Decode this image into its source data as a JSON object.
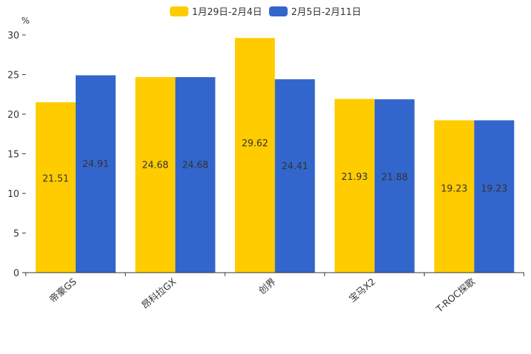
{
  "chart_data": {
    "type": "bar",
    "ylabel": "%",
    "ylim": [
      0,
      30
    ],
    "yticks": [
      0,
      5,
      10,
      15,
      20,
      25,
      30
    ],
    "categories": [
      "帝豪GS",
      "昂科拉GX",
      "创界",
      "宝马X2",
      "T-ROC探歌"
    ],
    "series": [
      {
        "name": "1月29日-2月4日",
        "color": "#FFCC00",
        "values": [
          21.51,
          24.68,
          29.62,
          21.93,
          19.23
        ],
        "labels": [
          "21.51",
          "24.68",
          "29.62",
          "21.93",
          "19.23"
        ]
      },
      {
        "name": "2月5日-2月11日",
        "color": "#3366CC",
        "values": [
          24.91,
          24.68,
          24.41,
          21.88,
          19.23
        ],
        "labels": [
          "24.91",
          "24.68",
          "24.41",
          "21.88",
          "19.23"
        ]
      }
    ]
  }
}
